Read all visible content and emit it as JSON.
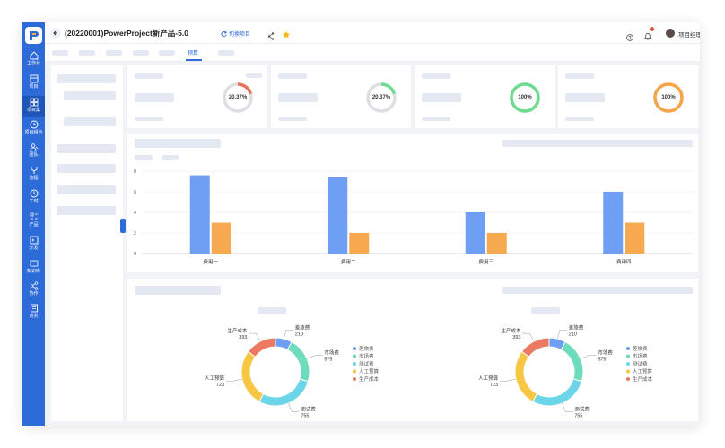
{
  "header": {
    "project_title": "(20220001)PowerProject新产品-5.0",
    "switch_label": "切换项目",
    "user_name": "项目经理 PM"
  },
  "sidebar": {
    "items": [
      {
        "label": "工作台",
        "icon": "home-icon"
      },
      {
        "label": "项目",
        "icon": "project-icon"
      },
      {
        "label": "项目集",
        "icon": "program-icon"
      },
      {
        "label": "项目组合",
        "icon": "portfolio-icon"
      },
      {
        "label": "团队",
        "icon": "team-icon"
      },
      {
        "label": "流程",
        "icon": "flow-icon"
      },
      {
        "label": "工时",
        "icon": "clock-icon"
      },
      {
        "label": "产品",
        "icon": "product-icon"
      },
      {
        "label": "开发",
        "icon": "dev-icon"
      },
      {
        "label": "知识库",
        "icon": "book-icon"
      },
      {
        "label": "协作",
        "icon": "share-icon"
      },
      {
        "label": "商务",
        "icon": "business-icon"
      }
    ]
  },
  "tabs": {
    "active_label": "预算"
  },
  "kpi_cards": [
    {
      "percent_label": "20.37%",
      "percent": 20.37,
      "color": "#e8735a"
    },
    {
      "percent_label": "20.37%",
      "percent": 20.37,
      "color": "#6fdb8f"
    },
    {
      "percent_label": "100%",
      "percent": 100,
      "color": "#6fdb8f"
    },
    {
      "percent_label": "100%",
      "percent": 100,
      "color": "#f5a54a"
    }
  ],
  "chart_data": [
    {
      "type": "bar",
      "categories": [
        "费用一",
        "费用二",
        "费用三",
        "费用四"
      ],
      "ylim": [
        0,
        8
      ],
      "yticks": [
        "0",
        "2",
        "4",
        "6",
        "8"
      ],
      "series": [
        {
          "values": [
            7.6,
            7.4,
            4.0,
            6.0
          ],
          "color": "#6f9ef5"
        },
        {
          "values": [
            3.0,
            2.0,
            2.0,
            3.0
          ],
          "color": "#f7a94f"
        }
      ]
    },
    {
      "type": "pie",
      "legend": [
        "差旅费",
        "市场费",
        "测试费",
        "人工预算",
        "生产成本"
      ],
      "values": [
        210,
        575,
        755,
        723,
        393
      ],
      "colors": [
        "#6f9ef5",
        "#6edbbd",
        "#6dd5e8",
        "#f6c644",
        "#ec7a63"
      ]
    },
    {
      "type": "pie",
      "legend": [
        "差旅费",
        "市场费",
        "测试费",
        "人工预算",
        "生产成本"
      ],
      "values": [
        210,
        575,
        755,
        723,
        393
      ],
      "colors": [
        "#6f9ef5",
        "#6edbbd",
        "#6dd5e8",
        "#f6c644",
        "#ec7a63"
      ]
    }
  ]
}
